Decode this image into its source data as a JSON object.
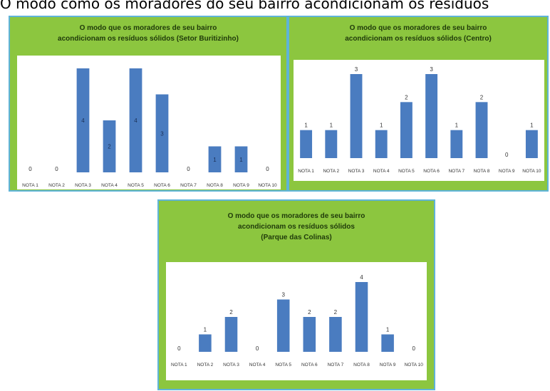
{
  "caption": "O modo como os moradores do seu bairro acondicionam os resíduos",
  "colors": {
    "panel_bg": "#8cc63f",
    "panel_border": "#5fb4d8",
    "bar": "#4a7cc0"
  },
  "chart_data": [
    {
      "type": "bar",
      "title_lines": [
        "O modo que os moradores de seu bairro",
        "acondicionam os resíduos sólidos (Setor Buritizinho)"
      ],
      "categories": [
        "NOTA 1",
        "NOTA 2",
        "NOTA 3",
        "NOTA 4",
        "NOTA 5",
        "NOTA 6",
        "NOTA 7",
        "NOTA 8",
        "NOTA 9",
        "NOTA 10"
      ],
      "values": [
        0,
        0,
        4,
        2,
        4,
        3,
        0,
        1,
        1,
        0
      ],
      "ylim": [
        0,
        4
      ],
      "label_position": "inside",
      "grid": false
    },
    {
      "type": "bar",
      "title_lines": [
        "O modo que os moradores de seu bairro",
        "acondicionam os resíduos sólidos (Centro)"
      ],
      "categories": [
        "NOTA 1",
        "NOTA 2",
        "NOTA 3",
        "NOTA 4",
        "NOTA 5",
        "NOTA 6",
        "NOTA 7",
        "NOTA 8",
        "NOTA 9",
        "NOTA 10"
      ],
      "values": [
        1,
        1,
        3,
        1,
        2,
        3,
        1,
        2,
        0,
        1
      ],
      "ylim": [
        0,
        3
      ],
      "label_position": "above",
      "grid": false
    },
    {
      "type": "bar",
      "title_lines": [
        "O modo que os moradores de seu bairro",
        "acondicionam os resíduos sólidos",
        "(Parque das Colinas)"
      ],
      "categories": [
        "NOTA 1",
        "NOTA 2",
        "NOTA 3",
        "NOTA 4",
        "NOTA 5",
        "NOTA 6",
        "NOTA 7",
        "NOTA 8",
        "NOTA 9",
        "NOTA 10"
      ],
      "values": [
        0,
        1,
        2,
        0,
        3,
        2,
        2,
        4,
        1,
        0
      ],
      "ylim": [
        0,
        4
      ],
      "label_position": "above",
      "grid": false
    }
  ]
}
